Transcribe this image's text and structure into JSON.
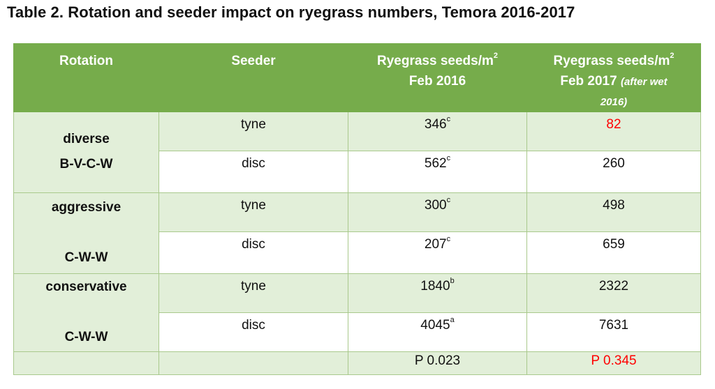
{
  "caption": "Table 2. Rotation and seeder impact on ryegrass numbers, Temora 2016-2017",
  "colors": {
    "header_bg": "#76ac4b",
    "row_shade": "#e2efd9",
    "highlight": "#ff0000"
  },
  "header": {
    "rotation": "Rotation",
    "seeder": "Seeder",
    "col3_line1": "Ryegrass seeds/m",
    "col3_sup": "2",
    "col3_line2": "Feb 2016",
    "col4_line1": "Ryegrass seeds/m",
    "col4_sup": "2",
    "col4_line2": "Feb 2017",
    "col4_note1": "(after wet",
    "col4_note2": "2016)"
  },
  "groups": [
    {
      "name": "diverse",
      "code": "B-V-C-W",
      "rows": [
        {
          "seeder": "tyne",
          "feb2016": "346",
          "sup": "c",
          "feb2017": "82",
          "highlight": true
        },
        {
          "seeder": "disc",
          "feb2016": "562",
          "sup": "c",
          "feb2017": "260",
          "highlight": false
        }
      ]
    },
    {
      "name": "aggressive",
      "code": "C-W-W",
      "rows": [
        {
          "seeder": "tyne",
          "feb2016": "300",
          "sup": "c",
          "feb2017": "498",
          "highlight": false
        },
        {
          "seeder": "disc",
          "feb2016": "207",
          "sup": "c",
          "feb2017": "659",
          "highlight": false
        }
      ]
    },
    {
      "name": "conservative",
      "code": "C-W-W",
      "rows": [
        {
          "seeder": "tyne",
          "feb2016": "1840",
          "sup": "b",
          "feb2017": "2322",
          "highlight": false
        },
        {
          "seeder": "disc",
          "feb2016": "4045",
          "sup": "a",
          "feb2017": "7631",
          "highlight": false
        }
      ]
    }
  ],
  "pvalues": {
    "feb2016": "P 0.023",
    "feb2017": "P 0.345"
  }
}
